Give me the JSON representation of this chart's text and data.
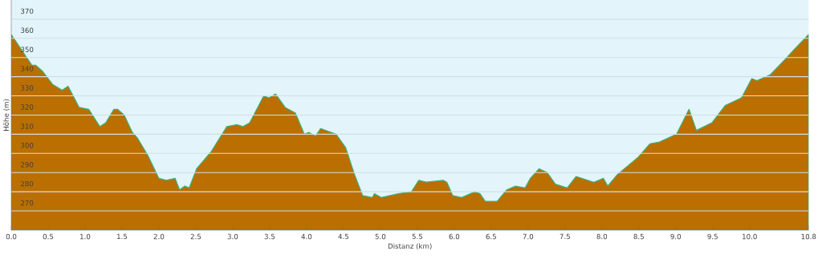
{
  "chart_data": {
    "type": "area",
    "xlabel": "Distanz   (km)",
    "ylabel": "Höhe (m)",
    "x": [
      0,
      0.21,
      0.28,
      0.33,
      0.42,
      0.56,
      0.69,
      0.77,
      0.92,
      1.05,
      1.2,
      1.28,
      1.39,
      1.44,
      1.53,
      1.64,
      1.71,
      1.85,
      2.0,
      2.1,
      2.22,
      2.28,
      2.35,
      2.41,
      2.51,
      2.71,
      2.92,
      3.06,
      3.14,
      3.23,
      3.42,
      3.49,
      3.58,
      3.71,
      3.85,
      3.97,
      4.03,
      4.12,
      4.19,
      4.4,
      4.53,
      4.65,
      4.76,
      4.89,
      4.92,
      5.01,
      5.24,
      5.42,
      5.52,
      5.62,
      5.85,
      5.9,
      5.98,
      6.1,
      6.28,
      6.35,
      6.42,
      6.58,
      6.71,
      6.83,
      6.96,
      7.03,
      7.15,
      7.26,
      7.37,
      7.53,
      7.65,
      7.89,
      8.02,
      8.08,
      8.21,
      8.49,
      8.65,
      8.78,
      9.01,
      9.18,
      9.28,
      9.49,
      9.67,
      9.89,
      10.03,
      10.1,
      10.28,
      10.48,
      10.6,
      10.8
    ],
    "series": [
      {
        "color": "#ba6f00",
        "values": [
          362,
          350,
          346,
          346,
          343,
          336,
          333,
          335,
          324,
          323,
          314,
          316,
          323,
          323,
          320,
          311,
          308,
          299,
          287,
          286,
          287,
          281,
          283,
          282,
          292,
          301,
          314,
          315,
          314,
          316,
          330,
          329,
          331,
          324,
          321,
          310,
          311,
          309,
          313,
          310,
          303,
          289,
          278,
          277,
          279,
          277,
          279,
          280,
          286,
          285,
          286,
          285,
          278,
          277,
          280,
          279,
          275,
          275,
          281,
          283,
          282,
          287,
          292,
          290,
          284,
          282,
          288,
          285,
          287,
          283,
          289,
          298,
          305,
          306,
          310,
          323,
          312,
          316,
          325,
          329,
          339,
          338,
          341,
          349,
          354,
          362
        ]
      }
    ],
    "xlim": [
      0,
      10.8
    ],
    "ylim": [
      260,
      380
    ],
    "xticks": [
      {
        "value": 0,
        "label": "0.0"
      },
      0.5,
      {
        "value": 1,
        "label": "1.0"
      },
      1.5,
      {
        "value": 2,
        "label": "2.0"
      },
      2.5,
      {
        "value": 3,
        "label": "3.0"
      },
      3.5,
      {
        "value": 4,
        "label": "4.0"
      },
      4.5,
      {
        "value": 5,
        "label": "5.0"
      },
      5.5,
      {
        "value": 6,
        "label": "6.0"
      },
      6.5,
      {
        "value": 7,
        "label": "7.0"
      },
      7.5,
      {
        "value": 8,
        "label": "8.0"
      },
      8.5,
      {
        "value": 9,
        "label": "9.0"
      },
      9.5,
      {
        "value": 10,
        "label": "10.0"
      },
      10.8
    ],
    "yticks": [
      270,
      280,
      290,
      300,
      310,
      320,
      330,
      340,
      350,
      360,
      370
    ],
    "grid": "y"
  }
}
